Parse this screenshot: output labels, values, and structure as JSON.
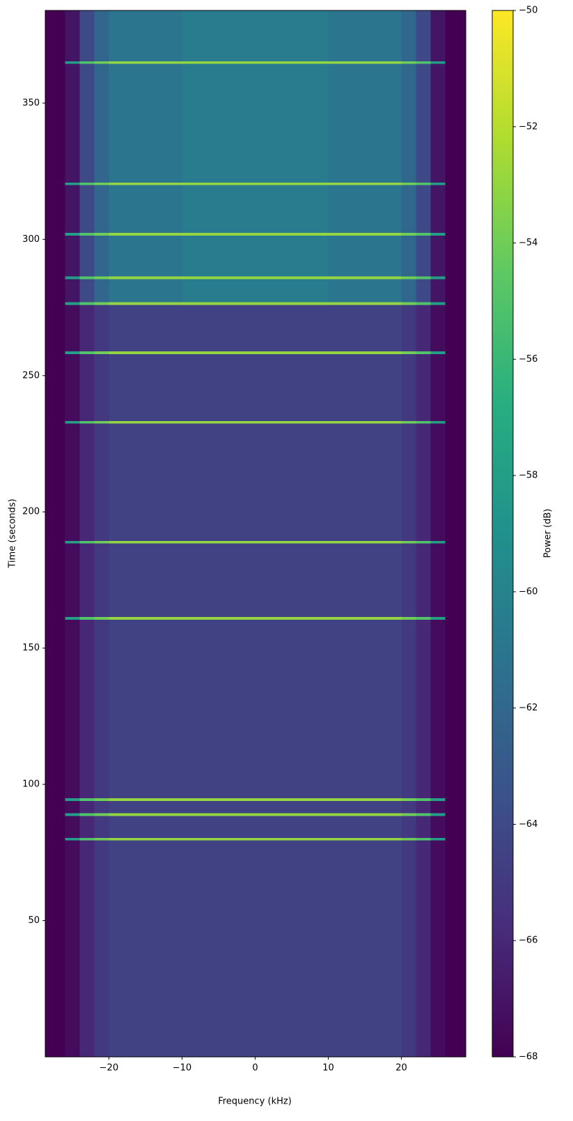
{
  "chart_data": {
    "type": "heatmap",
    "xlabel": "Frequency (kHz)",
    "ylabel": "Time (seconds)",
    "colorbar_label": "Power (dB)",
    "xlim": [
      -28.7,
      28.8
    ],
    "ylim": [
      0,
      384
    ],
    "xticks": [
      {
        "value": -20,
        "label": "−20"
      },
      {
        "value": -10,
        "label": "−10"
      },
      0,
      10,
      20
    ],
    "yticks": [
      50,
      100,
      150,
      200,
      250,
      300,
      350
    ],
    "clim": [
      -68,
      -50
    ],
    "cticks": [
      {
        "value": -68,
        "label": "−68"
      },
      {
        "value": -66,
        "label": "−66"
      },
      {
        "value": -64,
        "label": "−64"
      },
      {
        "value": -62,
        "label": "−62"
      },
      {
        "value": -60,
        "label": "−60"
      },
      {
        "value": -58,
        "label": "−58"
      },
      {
        "value": -56,
        "label": "−56"
      },
      {
        "value": -54,
        "label": "−54"
      },
      {
        "value": -52,
        "label": "−52"
      },
      {
        "value": -50,
        "label": "−50"
      }
    ],
    "colormap": [
      "#440154",
      "#472d7b",
      "#3b528b",
      "#2c728e",
      "#21918c",
      "#28ae80",
      "#5ec962",
      "#addc30",
      "#fde725"
    ],
    "xbins": [
      -28.7,
      -26,
      -24,
      -22,
      -20,
      -10,
      0,
      10,
      20,
      22,
      24,
      26,
      28.8
    ],
    "ybins": [
      0,
      79.5,
      80.5,
      88.5,
      89.5,
      94,
      95,
      160.5,
      161.5,
      188.5,
      189.5,
      232.5,
      233.5,
      258,
      259,
      276,
      277,
      285.5,
      286.5,
      301.5,
      302.5,
      320,
      321,
      364.5,
      365.5,
      384
    ],
    "values": [
      [
        -68,
        -67.5,
        -66,
        -65,
        -64.5,
        -64.5,
        -64.5,
        -64.5,
        -65,
        -66,
        -67.5,
        -68
      ],
      [
        -68,
        -58,
        -55,
        -54,
        -53,
        -53,
        -53,
        -53,
        -54,
        -55,
        -58,
        -68
      ],
      [
        -68,
        -67.5,
        -66,
        -65,
        -64.5,
        -64.5,
        -64.5,
        -64.5,
        -65,
        -66,
        -67.5,
        -68
      ],
      [
        -68,
        -58,
        -55,
        -54,
        -53,
        -53,
        -53,
        -53,
        -54,
        -55,
        -58,
        -68
      ],
      [
        -68,
        -67.5,
        -66,
        -65,
        -64.5,
        -64.5,
        -64.5,
        -64.5,
        -65,
        -66,
        -67.5,
        -68
      ],
      [
        -68,
        -58,
        -55,
        -54,
        -53,
        -53,
        -53,
        -53,
        -54,
        -55,
        -58,
        -68
      ],
      [
        -68,
        -67.5,
        -66,
        -65,
        -64.5,
        -64.5,
        -64.5,
        -64.5,
        -65,
        -66,
        -67.5,
        -68
      ],
      [
        -68,
        -58,
        -55,
        -54,
        -53,
        -53,
        -53,
        -53,
        -54,
        -55,
        -58,
        -68
      ],
      [
        -68,
        -67.5,
        -66,
        -65,
        -64.5,
        -64.5,
        -64.5,
        -64.5,
        -65,
        -66,
        -67.5,
        -68
      ],
      [
        -68,
        -58,
        -55,
        -54,
        -53,
        -53,
        -53,
        -53,
        -54,
        -55,
        -58,
        -68
      ],
      [
        -68,
        -67.5,
        -66,
        -65,
        -64.5,
        -64.5,
        -64.5,
        -64.5,
        -65,
        -66,
        -67.5,
        -68
      ],
      [
        -68,
        -58,
        -55,
        -54,
        -53,
        -53,
        -53,
        -53,
        -54,
        -55,
        -58,
        -68
      ],
      [
        -68,
        -67.5,
        -66,
        -65,
        -64.5,
        -64.5,
        -64.5,
        -64.5,
        -65,
        -66,
        -67.5,
        -68
      ],
      [
        -68,
        -58,
        -55,
        -54,
        -53,
        -53,
        -53,
        -53,
        -54,
        -55,
        -58,
        -68
      ],
      [
        -68,
        -67.5,
        -66,
        -65,
        -64.5,
        -64.5,
        -64.5,
        -64.5,
        -65,
        -66,
        -67.5,
        -68
      ],
      [
        -68,
        -58,
        -55,
        -54,
        -53,
        -53,
        -53,
        -53,
        -54,
        -55,
        -58,
        -68
      ],
      [
        -68,
        -67,
        -64,
        -62,
        -61,
        -60.5,
        -60.5,
        -61,
        -62,
        -64,
        -67,
        -68
      ],
      [
        -68,
        -58,
        -55,
        -54,
        -53,
        -53,
        -53,
        -53,
        -54,
        -55,
        -58,
        -68
      ],
      [
        -68,
        -67,
        -64,
        -62,
        -61,
        -60.5,
        -60.5,
        -61,
        -62,
        -64,
        -67,
        -68
      ],
      [
        -68,
        -58,
        -55,
        -54,
        -53,
        -53,
        -53,
        -53,
        -54,
        -55,
        -58,
        -68
      ],
      [
        -68,
        -67,
        -64,
        -62,
        -61,
        -60.5,
        -60.5,
        -61,
        -62,
        -64,
        -67,
        -68
      ],
      [
        -68,
        -58,
        -55,
        -54,
        -53,
        -53,
        -53,
        -53,
        -54,
        -55,
        -58,
        -68
      ],
      [
        -68,
        -67,
        -64,
        -62,
        -61,
        -60.5,
        -60.5,
        -61,
        -62,
        -64,
        -67,
        -68
      ],
      [
        -68,
        -58,
        -55,
        -54,
        -53,
        -53,
        -53,
        -53,
        -54,
        -55,
        -58,
        -68
      ],
      [
        -68,
        -67,
        -64,
        -62,
        -61,
        -60.5,
        -60.5,
        -61,
        -62,
        -64,
        -67,
        -68
      ]
    ]
  }
}
